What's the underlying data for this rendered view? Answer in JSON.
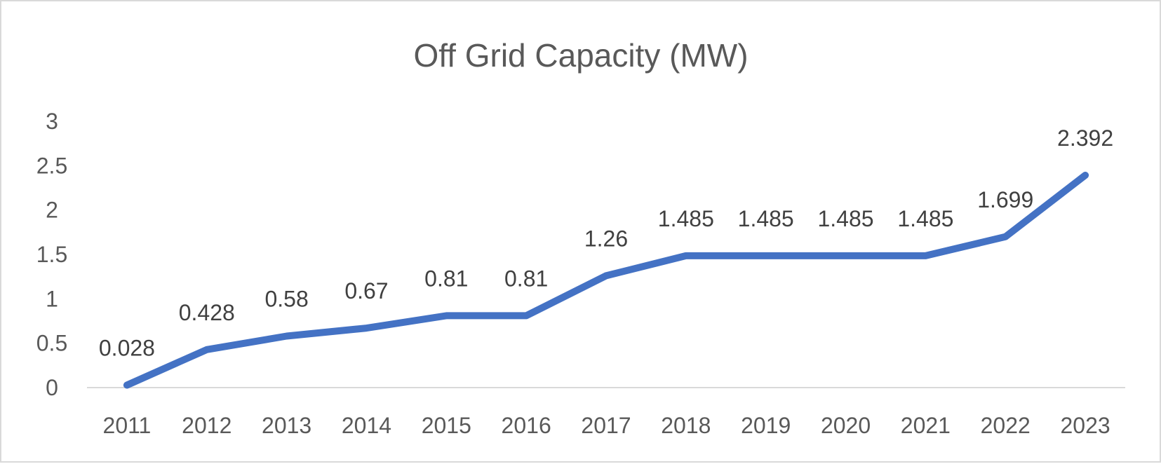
{
  "chart_data": {
    "type": "line",
    "title": "Off Grid Capacity (MW)",
    "xlabel": "",
    "ylabel": "",
    "categories": [
      "2011",
      "2012",
      "2013",
      "2014",
      "2015",
      "2016",
      "2017",
      "2018",
      "2019",
      "2020",
      "2021",
      "2022",
      "2023"
    ],
    "series": [
      {
        "values": [
          0.028,
          0.428,
          0.58,
          0.67,
          0.81,
          0.81,
          1.26,
          1.485,
          1.485,
          1.485,
          1.485,
          1.699,
          2.392
        ],
        "data_labels": [
          "0.028",
          "0.428",
          "0.58",
          "0.67",
          "0.81",
          "0.81",
          "1.26",
          "1.485",
          "1.485",
          "1.485",
          "1.485",
          "1.699",
          "2.392"
        ],
        "color": "#4472c4"
      }
    ],
    "ylim": [
      0,
      3
    ],
    "yticks": [
      "0",
      "0.5",
      "1",
      "1.5",
      "2",
      "2.5",
      "3"
    ],
    "grid": false,
    "legend": "none"
  }
}
